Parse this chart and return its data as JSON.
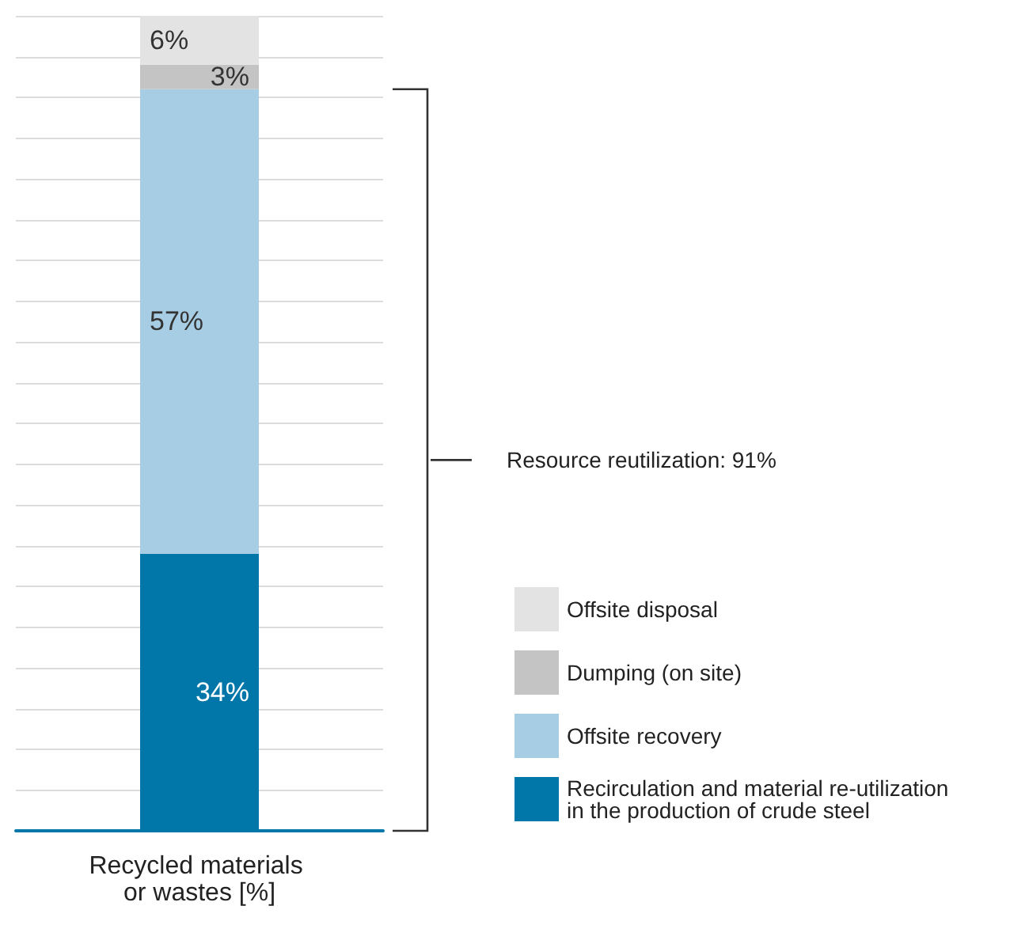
{
  "chart_data": {
    "type": "bar",
    "stacked": true,
    "categories": [
      "Recycled materials or wastes [%]"
    ],
    "series": [
      {
        "name": "Recirculation and material re-utilization in the production of crude steel",
        "color": "#0077a8",
        "values": [
          34
        ],
        "value_labels": [
          "34%"
        ]
      },
      {
        "name": "Offsite recovery",
        "color": "#a6cde4",
        "values": [
          57
        ],
        "value_labels": [
          "57%"
        ]
      },
      {
        "name": "Dumping (on site)",
        "color": "#c4c4c4",
        "values": [
          3
        ],
        "value_labels": [
          "3%"
        ]
      },
      {
        "name": "Offsite disposal",
        "color": "#e3e3e3",
        "values": [
          6
        ],
        "value_labels": [
          "6%"
        ]
      }
    ],
    "annotations": [
      "Resource reutilization: 91%"
    ],
    "grid": "y",
    "tick_labels": "x",
    "legend": "bottom right"
  }
}
